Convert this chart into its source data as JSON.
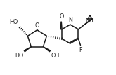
{
  "bg_color": "#ffffff",
  "line_color": "#1a1a1a",
  "line_width": 1.1,
  "font_size": 5.8,
  "figsize": [
    1.65,
    1.07
  ],
  "dpi": 100,
  "xlim": [
    0,
    10
  ],
  "ylim": [
    0,
    6.5
  ]
}
